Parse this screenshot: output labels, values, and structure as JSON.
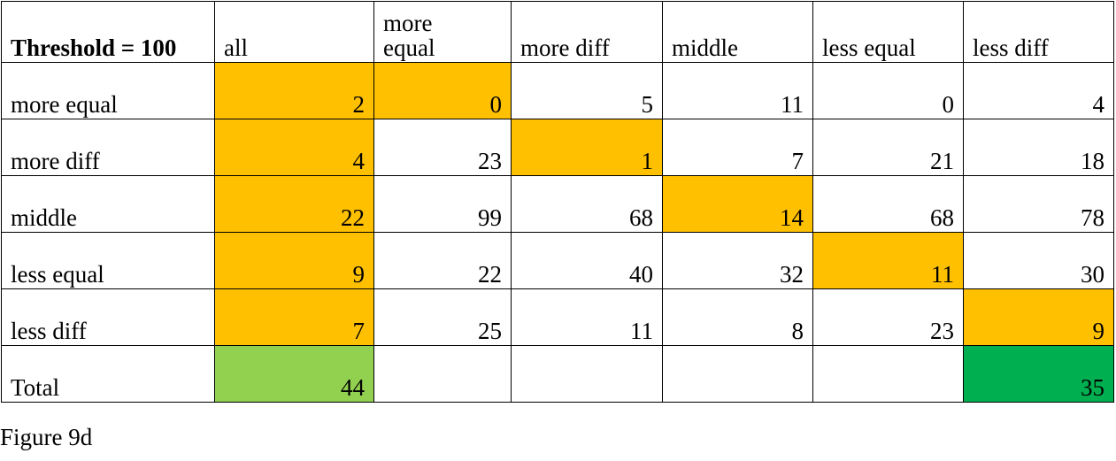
{
  "table": {
    "corner": "Threshold = 100",
    "columns": [
      "all",
      "more equal",
      "more diff",
      "middle",
      "less equal",
      "less diff"
    ],
    "rows": [
      {
        "label": "more equal",
        "values": [
          "2",
          "0",
          "5",
          "11",
          "0",
          "4"
        ],
        "highlight": [
          "orange",
          "orange",
          "",
          "",
          "",
          ""
        ]
      },
      {
        "label": "more diff",
        "values": [
          "4",
          "23",
          "1",
          "7",
          "21",
          "18"
        ],
        "highlight": [
          "orange",
          "",
          "orange",
          "",
          "",
          ""
        ]
      },
      {
        "label": "middle",
        "values": [
          "22",
          "99",
          "68",
          "14",
          "68",
          "78"
        ],
        "highlight": [
          "orange",
          "",
          "",
          "orange",
          "",
          ""
        ]
      },
      {
        "label": "less equal",
        "values": [
          "9",
          "22",
          "40",
          "32",
          "11",
          "30"
        ],
        "highlight": [
          "orange",
          "",
          "",
          "",
          "orange",
          ""
        ]
      },
      {
        "label": "less diff",
        "values": [
          "7",
          "25",
          "11",
          "8",
          "23",
          "9"
        ],
        "highlight": [
          "orange",
          "",
          "",
          "",
          "",
          "orange"
        ]
      }
    ],
    "total": {
      "label": "Total",
      "values": [
        "44",
        "",
        "",
        "",
        "",
        "35"
      ],
      "highlight": [
        "lightgreen",
        "",
        "",
        "",
        "",
        "green"
      ]
    }
  },
  "colors": {
    "orange": "#FFC000",
    "lightgreen": "#92D050",
    "green": "#00B050"
  },
  "caption": "Figure 9d"
}
